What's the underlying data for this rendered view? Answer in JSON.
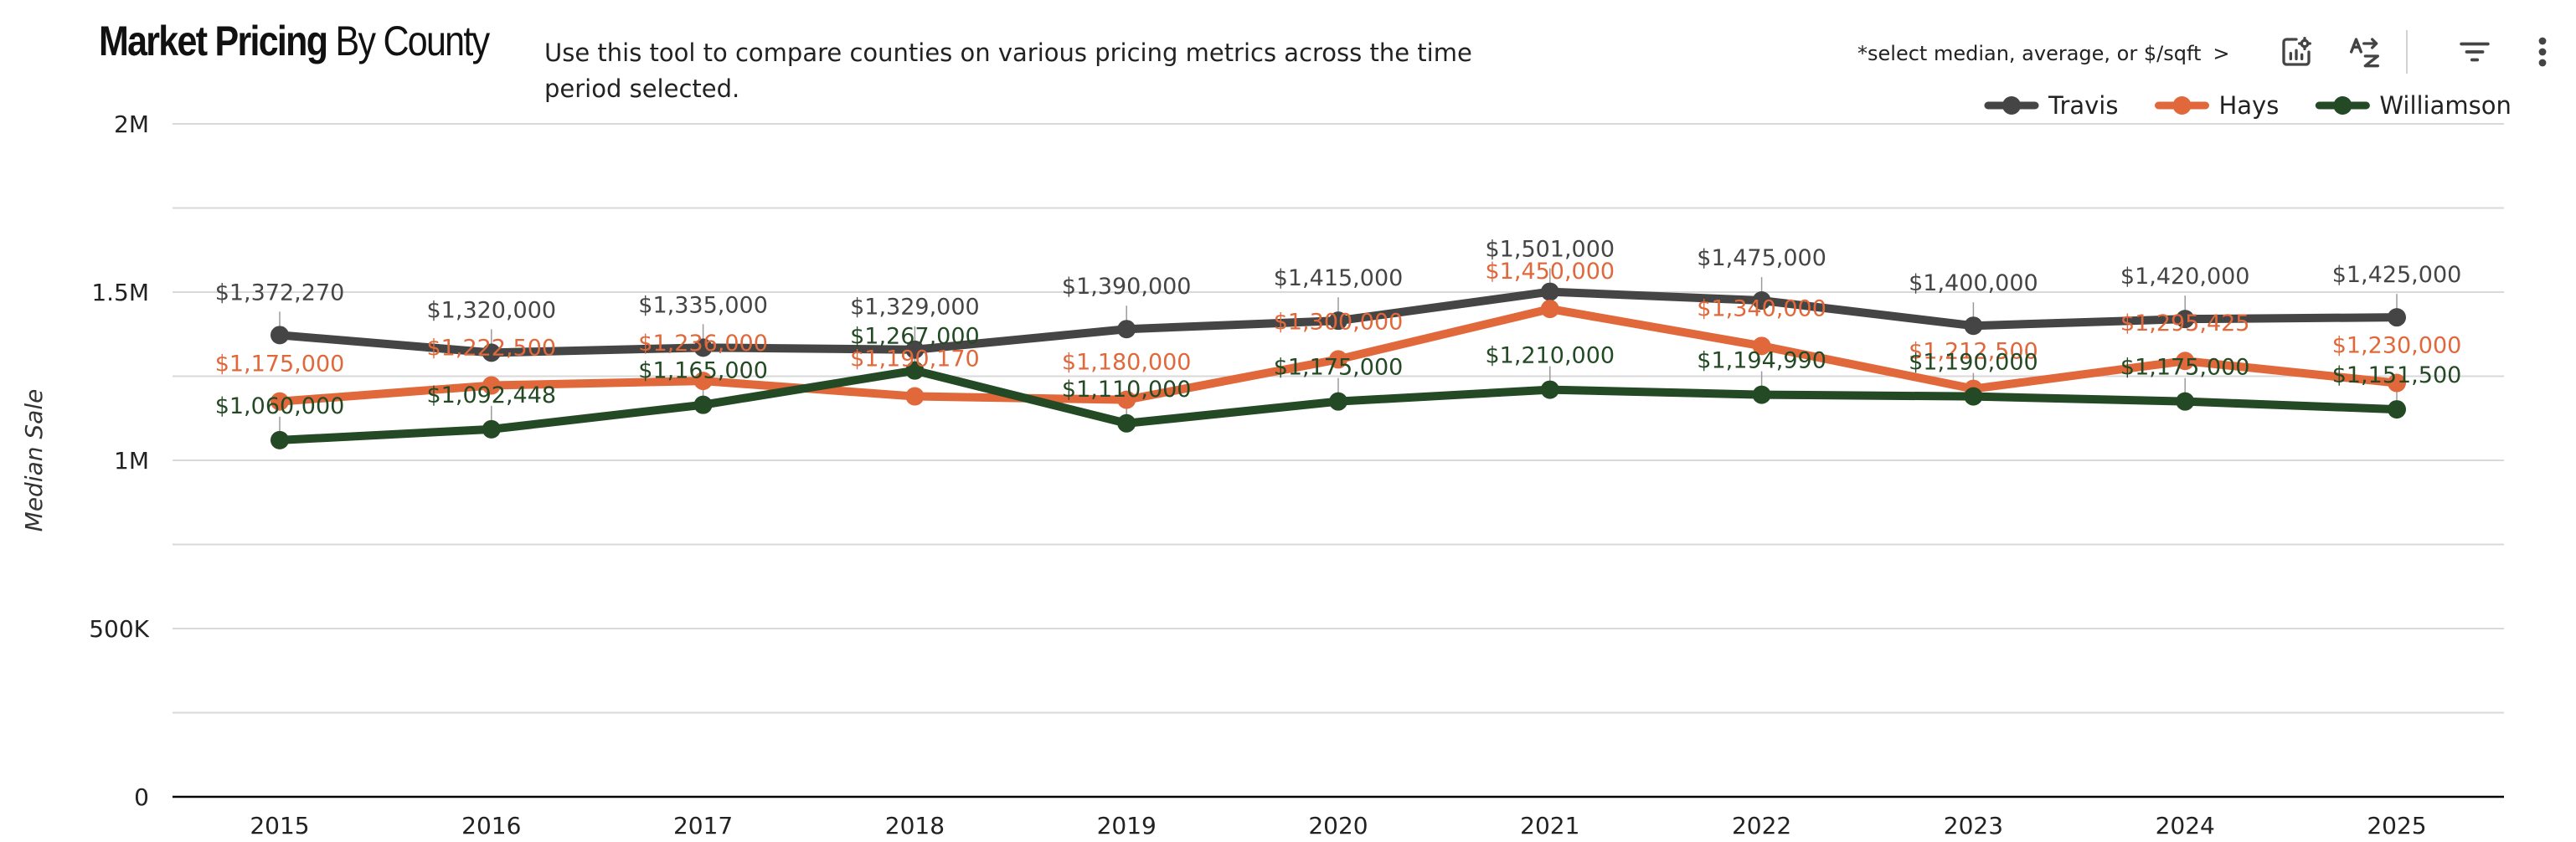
{
  "header": {
    "title_bold": "Market Pricing",
    "title_rest": "By County",
    "description": "Use this tool to compare counties on various pricing metrics across the time period selected.",
    "hint": "*select median, average, or $/sqft",
    "hint_arrow": ">"
  },
  "toolbar": {
    "icons": [
      "chart-settings-icon",
      "sort-az-icon",
      "filter-icon",
      "more-vert-icon"
    ]
  },
  "colors": {
    "Travis": "#454545",
    "Hays": "#e0683b",
    "Williamson": "#234a24",
    "grid": "#d9d9d9",
    "axis": "#000000"
  },
  "chart_data": {
    "type": "line",
    "title": "Market Pricing By County",
    "xlabel": "",
    "ylabel": "Median Sale",
    "ylim": [
      0,
      2000000
    ],
    "yticks": [
      0,
      500000,
      1000000,
      1500000,
      2000000
    ],
    "ytick_labels": [
      "0",
      "500K",
      "1M",
      "1.5M",
      "2M"
    ],
    "grid": true,
    "legend": "top-right",
    "categories": [
      "2015",
      "2016",
      "2017",
      "2018",
      "2019",
      "2020",
      "2021",
      "2022",
      "2023",
      "2024",
      "2025"
    ],
    "series": [
      {
        "name": "Travis",
        "values": [
          1372270,
          1320000,
          1335000,
          1329000,
          1390000,
          1415000,
          1501000,
          1475000,
          1400000,
          1420000,
          1425000
        ],
        "labels": [
          "$1,372,270",
          "$1,320,000",
          "$1,335,000",
          "$1,329,000",
          "$1,390,000",
          "$1,415,000",
          "$1,501,000",
          "$1,475,000",
          "$1,400,000",
          "$1,420,000",
          "$1,425,000"
        ]
      },
      {
        "name": "Hays",
        "values": [
          1175000,
          1222500,
          1236000,
          1190170,
          1180000,
          1300000,
          1450000,
          1340000,
          1212500,
          1295425,
          1230000
        ],
        "labels": [
          "$1,175,000",
          "$1,222,500",
          "$1,236,000",
          "$1,190,170",
          "$1,180,000",
          "$1,300,000",
          "$1,450,000",
          "$1,340,000",
          "$1,212,500",
          "$1,295,425",
          "$1,230,000"
        ]
      },
      {
        "name": "Williamson",
        "values": [
          1060000,
          1092448,
          1165000,
          1267000,
          1110000,
          1175000,
          1210000,
          1194990,
          1190000,
          1175000,
          1151500
        ],
        "labels": [
          "$1,060,000",
          "$1,092,448",
          "$1,165,000",
          "$1,267,000",
          "$1,110,000",
          "$1,175,000",
          "$1,210,000",
          "$1,194,990",
          "$1,190,000",
          "$1,175,000",
          "$1,151,500"
        ]
      }
    ]
  }
}
